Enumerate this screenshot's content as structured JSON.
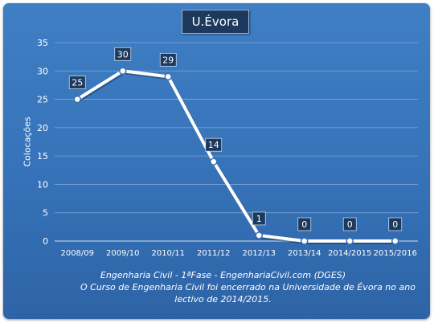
{
  "chart_data": {
    "type": "line",
    "title": "U.Évora",
    "ylabel": "Colocações",
    "xlabel": "",
    "ylim": [
      0,
      35
    ],
    "yticks": [
      0,
      5,
      10,
      15,
      20,
      25,
      30,
      35
    ],
    "grid": true,
    "categories": [
      "2008/09",
      "2009/10",
      "2010/11",
      "2011/12",
      "2012/13",
      "2013/14",
      "2014/2015",
      "2015/2016"
    ],
    "series": [
      {
        "values": [
          25,
          30,
          29,
          14,
          1,
          0,
          0,
          0
        ]
      }
    ],
    "data_labels": [
      "25",
      "30",
      "29",
      "14",
      "1",
      "0",
      "0",
      "0"
    ]
  },
  "caption": {
    "line1": "Engenharia Civil - 1ªFase - EngenhariaCivil.com  (DGES)",
    "line2": "O Curso de Engenharia Civil foi encerrado  na Universidade de Évora no ano",
    "line3": "lectivo de 2014/2015."
  },
  "colors": {
    "background": "#3672b8",
    "line": "#ffffff",
    "label_box": "#1d3a5e",
    "grid": "#7fa6d6"
  }
}
